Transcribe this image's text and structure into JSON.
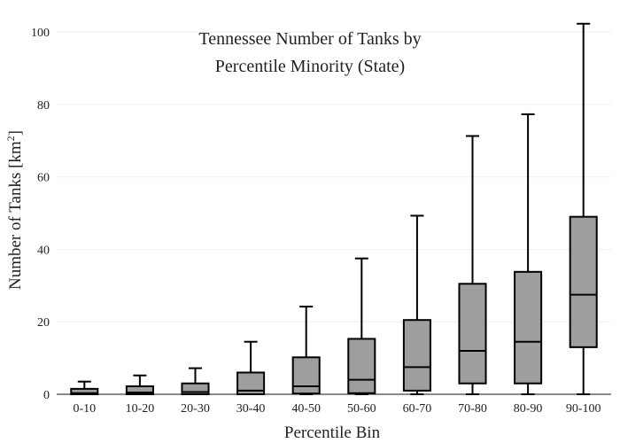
{
  "chart_data": {
    "type": "box",
    "title_lines": [
      "Tennessee Number of Tanks by",
      "Percentile Minority (State)"
    ],
    "xlabel": "Percentile Bin",
    "ylabel_main": "Number of Tanks  [km",
    "ylabel_sup": "2",
    "ylabel_end": "]",
    "ylim": [
      0,
      102
    ],
    "yticks": [
      0,
      20,
      40,
      60,
      80,
      100
    ],
    "grid": true,
    "categories": [
      "0-10",
      "10-20",
      "20-30",
      "30-40",
      "40-50",
      "50-60",
      "60-70",
      "70-80",
      "80-90",
      "90-100"
    ],
    "series": [
      {
        "values": [
          {
            "min": 0,
            "q1": 0,
            "median": 0.3,
            "q3": 1.5,
            "max": 3.5
          },
          {
            "min": 0,
            "q1": 0,
            "median": 0.5,
            "q3": 2.2,
            "max": 5.2
          },
          {
            "min": 0,
            "q1": 0,
            "median": 0.6,
            "q3": 3.0,
            "max": 7.2
          },
          {
            "min": 0,
            "q1": 0,
            "median": 1.0,
            "q3": 6.0,
            "max": 14.5
          },
          {
            "min": 0,
            "q1": 0.2,
            "median": 2.2,
            "q3": 10.2,
            "max": 24.2
          },
          {
            "min": 0,
            "q1": 0.3,
            "median": 4.0,
            "q3": 15.3,
            "max": 37.5
          },
          {
            "min": 0,
            "q1": 1.0,
            "median": 7.5,
            "q3": 20.5,
            "max": 49.3
          },
          {
            "min": 0,
            "q1": 3.0,
            "median": 12.0,
            "q3": 30.5,
            "max": 71.3
          },
          {
            "min": 0,
            "q1": 3.0,
            "median": 14.5,
            "q3": 33.8,
            "max": 77.3
          },
          {
            "min": 0,
            "q1": 13.0,
            "median": 27.5,
            "q3": 49.0,
            "max": 102.3
          }
        ]
      }
    ]
  }
}
